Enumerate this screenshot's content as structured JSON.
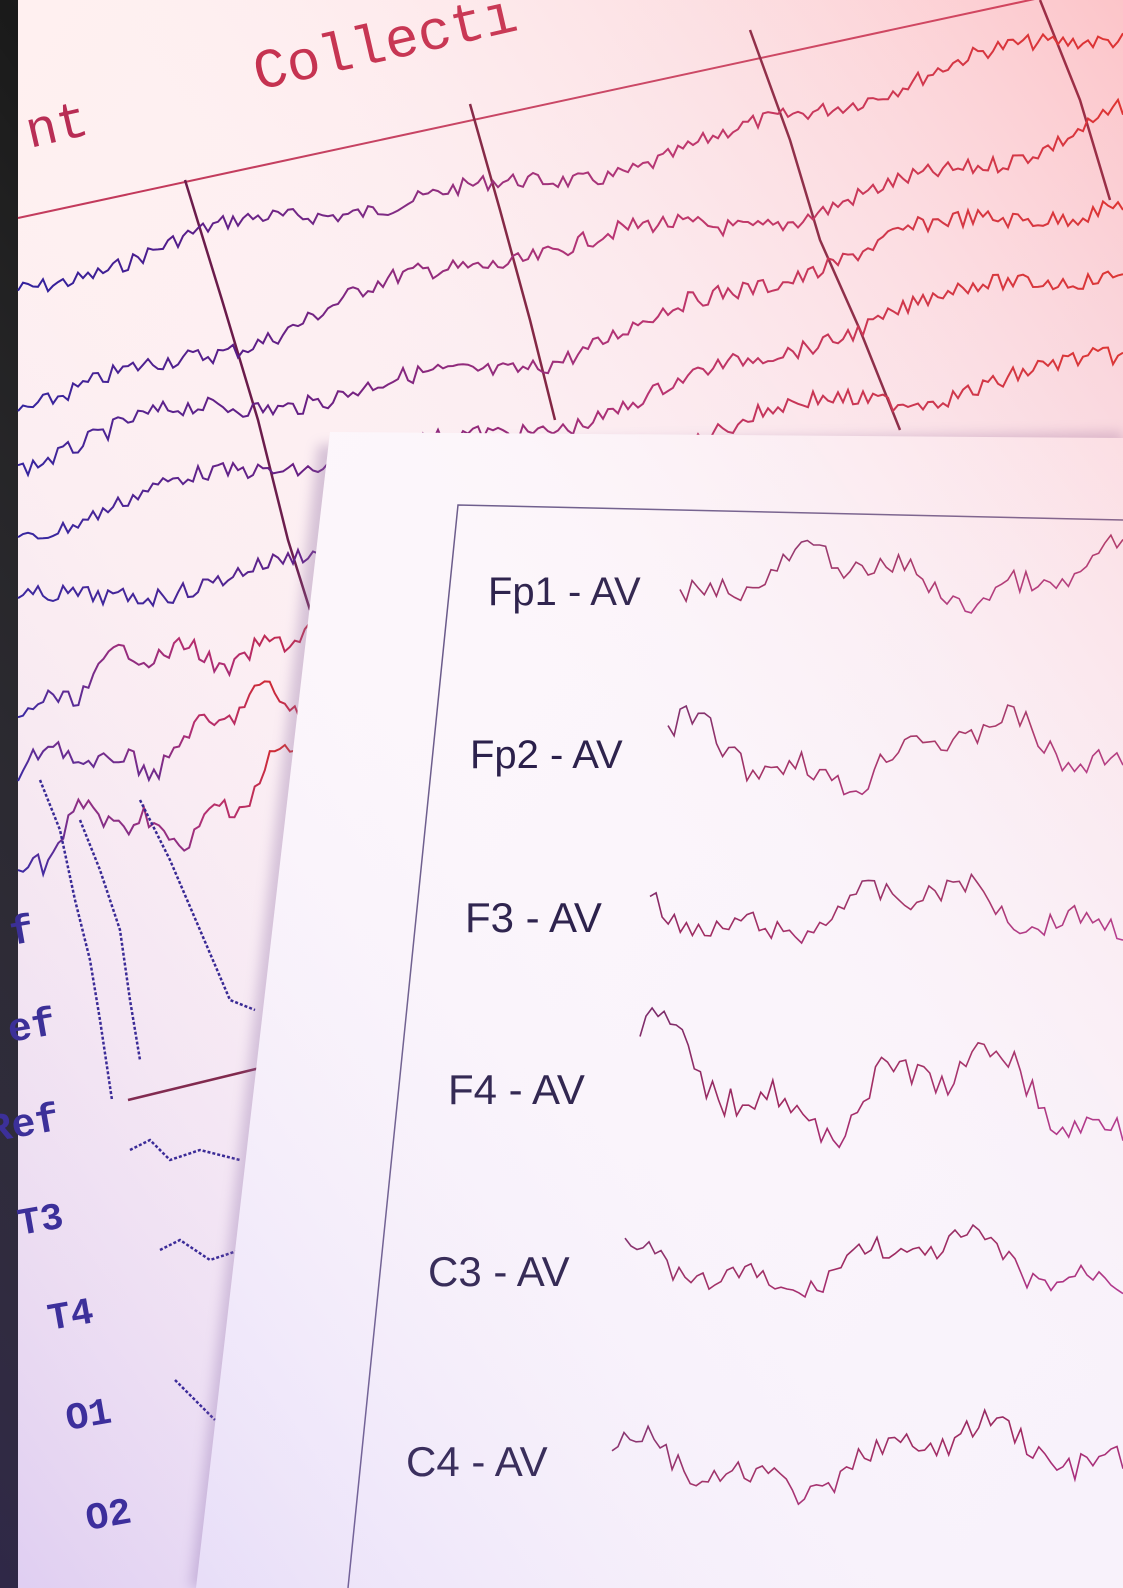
{
  "back_sheet": {
    "header_fragment_left": "nt",
    "header_fragment_right": "Collecti",
    "side_labels": [
      "f",
      "ef",
      "Ref",
      "T3",
      "T4",
      "O1",
      "O2"
    ]
  },
  "front_sheet": {
    "channels": [
      {
        "label": "Fp1 - AV"
      },
      {
        "label": "Fp2 - AV"
      },
      {
        "label": "F3 - AV"
      },
      {
        "label": "F4 - AV"
      },
      {
        "label": "C3 - AV"
      },
      {
        "label": "C4 - AV"
      }
    ]
  },
  "colors": {
    "tint_top_right": "#ff7a7a",
    "tint_bottom_left": "#b59bf0",
    "back_ink_top": "#c8201f",
    "back_ink_bottom": "#2a1a9a",
    "front_ink": "#9a2a7a",
    "label_ink": "#241a4a"
  }
}
